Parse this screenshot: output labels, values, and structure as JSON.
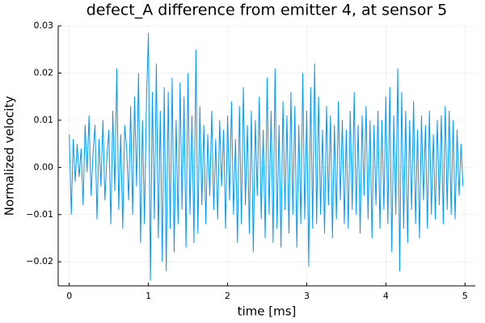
{
  "chart_data": {
    "type": "line",
    "title": "defect_A difference from emitter 4, at sensor 5",
    "xlabel": "time [ms]",
    "ylabel": "Normalized velocity",
    "xlim": [
      -0.14,
      5.13
    ],
    "ylim": [
      -0.0251,
      0.03
    ],
    "xticks": [
      0,
      1,
      2,
      3,
      4,
      5
    ],
    "yticks": [
      {
        "value": -0.02,
        "label": "−0.02"
      },
      {
        "value": -0.01,
        "label": "−0.01"
      },
      {
        "value": 0,
        "label": "0.00"
      },
      0.01,
      0.02,
      0.03
    ],
    "grid": true,
    "series": [
      {
        "color": "#009af9",
        "x": [
          0,
          0.025,
          0.05,
          0.075,
          0.1,
          0.125,
          0.15,
          0.175,
          0.2,
          0.225,
          0.25,
          0.275,
          0.3,
          0.325,
          0.35,
          0.375,
          0.4,
          0.425,
          0.45,
          0.475,
          0.5,
          0.525,
          0.55,
          0.575,
          0.6,
          0.625,
          0.65,
          0.675,
          0.7,
          0.725,
          0.75,
          0.775,
          0.8,
          0.825,
          0.85,
          0.875,
          0.9,
          0.925,
          0.95,
          0.975,
          1,
          1.025,
          1.05,
          1.075,
          1.1,
          1.125,
          1.15,
          1.175,
          1.2,
          1.225,
          1.25,
          1.275,
          1.3,
          1.325,
          1.35,
          1.375,
          1.4,
          1.425,
          1.45,
          1.475,
          1.5,
          1.525,
          1.55,
          1.575,
          1.6,
          1.625,
          1.65,
          1.675,
          1.7,
          1.725,
          1.75,
          1.775,
          1.8,
          1.825,
          1.85,
          1.875,
          1.9,
          1.925,
          1.95,
          1.975,
          2,
          2.025,
          2.05,
          2.075,
          2.1,
          2.125,
          2.15,
          2.175,
          2.2,
          2.225,
          2.25,
          2.275,
          2.3,
          2.325,
          2.35,
          2.375,
          2.4,
          2.425,
          2.45,
          2.475,
          2.5,
          2.525,
          2.55,
          2.575,
          2.6,
          2.625,
          2.65,
          2.675,
          2.7,
          2.725,
          2.75,
          2.775,
          2.8,
          2.825,
          2.85,
          2.875,
          2.9,
          2.925,
          2.95,
          2.975,
          3,
          3.025,
          3.05,
          3.075,
          3.1,
          3.125,
          3.15,
          3.175,
          3.2,
          3.225,
          3.25,
          3.275,
          3.3,
          3.325,
          3.35,
          3.375,
          3.4,
          3.425,
          3.45,
          3.475,
          3.5,
          3.525,
          3.55,
          3.575,
          3.6,
          3.625,
          3.65,
          3.675,
          3.7,
          3.725,
          3.75,
          3.775,
          3.8,
          3.825,
          3.85,
          3.875,
          3.9,
          3.925,
          3.95,
          3.975,
          4,
          4.025,
          4.05,
          4.075,
          4.1,
          4.125,
          4.15,
          4.175,
          4.2,
          4.225,
          4.25,
          4.275,
          4.3,
          4.325,
          4.35,
          4.375,
          4.4,
          4.425,
          4.45,
          4.475,
          4.5,
          4.525,
          4.55,
          4.575,
          4.6,
          4.625,
          4.65,
          4.675,
          4.7,
          4.725,
          4.75,
          4.775,
          4.8,
          4.825,
          4.85,
          4.875,
          4.9,
          4.925,
          4.95,
          4.975
        ],
        "values": [
          0.007,
          -0.01,
          0.006,
          -0.003,
          0.005,
          -0.002,
          0.004,
          -0.008,
          0.009,
          -0.001,
          0.011,
          -0.006,
          0.003,
          0.009,
          -0.011,
          0.006,
          -0.004,
          0.01,
          -0.007,
          0.002,
          0.008,
          -0.012,
          0.012,
          -0.005,
          0.021,
          -0.009,
          0.007,
          -0.013,
          0.009,
          0.004,
          -0.007,
          0.013,
          -0.01,
          0.015,
          -0.004,
          0.02,
          -0.016,
          0.01,
          -0.012,
          0.014,
          0.0285,
          -0.024,
          0.016,
          -0.011,
          0.022,
          -0.015,
          0.012,
          -0.02,
          0.017,
          -0.022,
          0.016,
          -0.013,
          0.019,
          -0.018,
          0.01,
          -0.012,
          0.018,
          -0.009,
          0.015,
          -0.017,
          0.02,
          -0.01,
          0.011,
          -0.016,
          0.025,
          -0.014,
          0.013,
          -0.008,
          0.009,
          -0.012,
          0.007,
          -0.006,
          0.012,
          -0.009,
          0.006,
          -0.011,
          0.01,
          -0.004,
          0.008,
          -0.013,
          0.011,
          -0.007,
          0.014,
          -0.01,
          0.006,
          -0.016,
          0.013,
          -0.012,
          0.017,
          -0.008,
          0.009,
          -0.014,
          0.012,
          -0.018,
          0.01,
          -0.006,
          0.015,
          -0.011,
          0.008,
          -0.015,
          0.019,
          -0.01,
          0.012,
          -0.016,
          0.021,
          -0.013,
          0.009,
          -0.017,
          0.014,
          -0.009,
          0.011,
          -0.014,
          0.016,
          -0.01,
          0.013,
          -0.017,
          0.009,
          -0.012,
          0.02,
          -0.011,
          0.012,
          -0.021,
          0.017,
          -0.013,
          0.022,
          -0.012,
          0.015,
          -0.01,
          0.008,
          -0.014,
          0.013,
          -0.008,
          0.011,
          -0.015,
          0.009,
          -0.011,
          0.014,
          -0.007,
          0.01,
          -0.012,
          0.008,
          -0.013,
          0.012,
          -0.009,
          0.016,
          -0.01,
          0.009,
          -0.014,
          0.011,
          -0.006,
          0.013,
          -0.011,
          0.01,
          -0.015,
          0.009,
          -0.008,
          0.012,
          -0.013,
          0.01,
          -0.009,
          0.015,
          -0.012,
          0.017,
          -0.018,
          0.011,
          -0.01,
          0.021,
          -0.022,
          0.016,
          -0.013,
          0.012,
          -0.016,
          0.01,
          -0.009,
          0.014,
          -0.012,
          0.008,
          -0.015,
          0.011,
          -0.007,
          0.009,
          -0.013,
          0.012,
          -0.01,
          0.007,
          -0.011,
          0.01,
          -0.008,
          0.011,
          -0.012,
          0.013,
          -0.009,
          0.012,
          -0.01,
          0.01,
          -0.011,
          0.008,
          -0.006,
          0.005,
          -0.004
        ]
      }
    ]
  }
}
